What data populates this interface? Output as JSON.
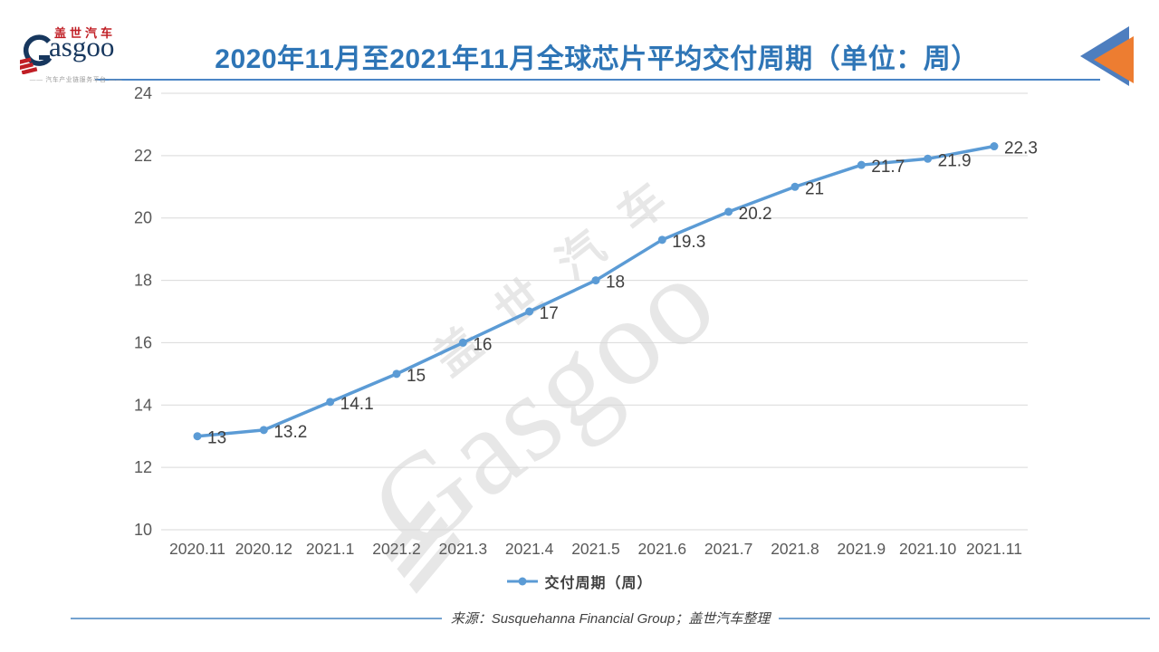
{
  "header": {
    "logo": {
      "cn": "盖世汽车",
      "en": "Gasgoo",
      "en_rest": "asgoo",
      "tagline": "—— 汽车产业链服务平台 ——"
    },
    "title": "2020年11月至2021年11月全球芯片平均交付周期（单位：周）",
    "accent_color": "#2E75B6"
  },
  "chart_data": {
    "type": "line",
    "title": "2020年11月至2021年11月全球芯片平均交付周期（单位：周）",
    "categories": [
      "2020.11",
      "2020.12",
      "2021.1",
      "2021.2",
      "2021.3",
      "2021.4",
      "2021.5",
      "2021.6",
      "2021.7",
      "2021.8",
      "2021.9",
      "2021.10",
      "2021.11"
    ],
    "series": [
      {
        "name": "交付周期（周）",
        "color": "#5B9BD5",
        "values": [
          13,
          13.2,
          14.1,
          15,
          16,
          17,
          18,
          19.3,
          20.2,
          21,
          21.7,
          21.9,
          22.3
        ]
      }
    ],
    "xlabel": "",
    "ylabel": "",
    "ylim": [
      10,
      24
    ],
    "y_ticks": [
      24,
      22,
      20,
      18,
      16,
      14,
      12,
      10
    ],
    "grid": true,
    "data_labels": true,
    "legend_position": "bottom",
    "axis_text_color": "#595959",
    "data_label_color": "#404040",
    "gridline_color": "#D9D9D9"
  },
  "legend": {
    "label": "交付周期（周）"
  },
  "footer": {
    "source": "来源：Susquehanna Financial Group；盖世汽车整理"
  },
  "watermark": {
    "cn": "盖世汽车",
    "en": "Gasgoo"
  }
}
